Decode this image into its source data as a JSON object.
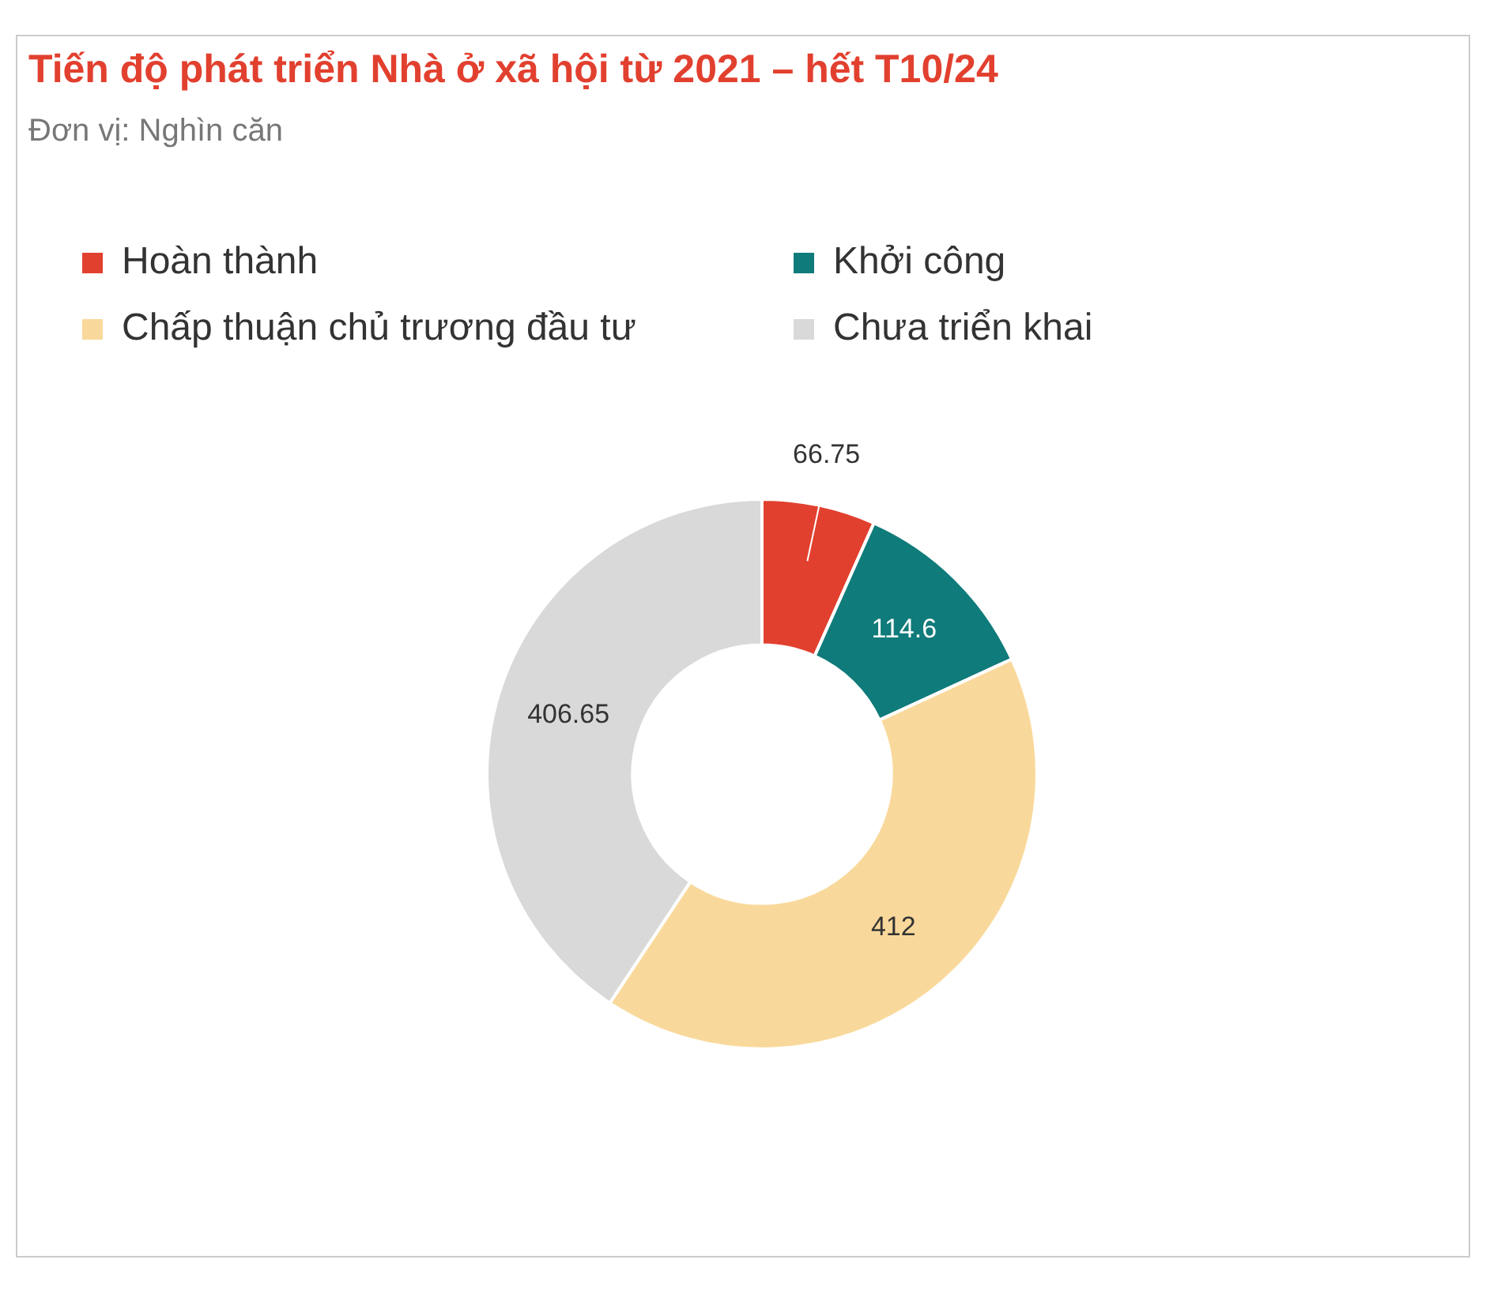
{
  "chart_data": {
    "type": "donut",
    "title": "Tiến độ phát triển Nhà ở xã hội từ 2021 – hết T10/24",
    "subtitle": "Đơn vị: Nghìn căn",
    "categories": [
      "Hoàn thành",
      "Khởi công",
      "Chấp thuận chủ trương đầu tư",
      "Chưa triển khai"
    ],
    "values": [
      66.75,
      114.6,
      412,
      406.65
    ],
    "colors": [
      "#e2402f",
      "#0f7b7a",
      "#f9d99b",
      "#d9d9d9"
    ],
    "data_labels": true,
    "legend": "top"
  }
}
